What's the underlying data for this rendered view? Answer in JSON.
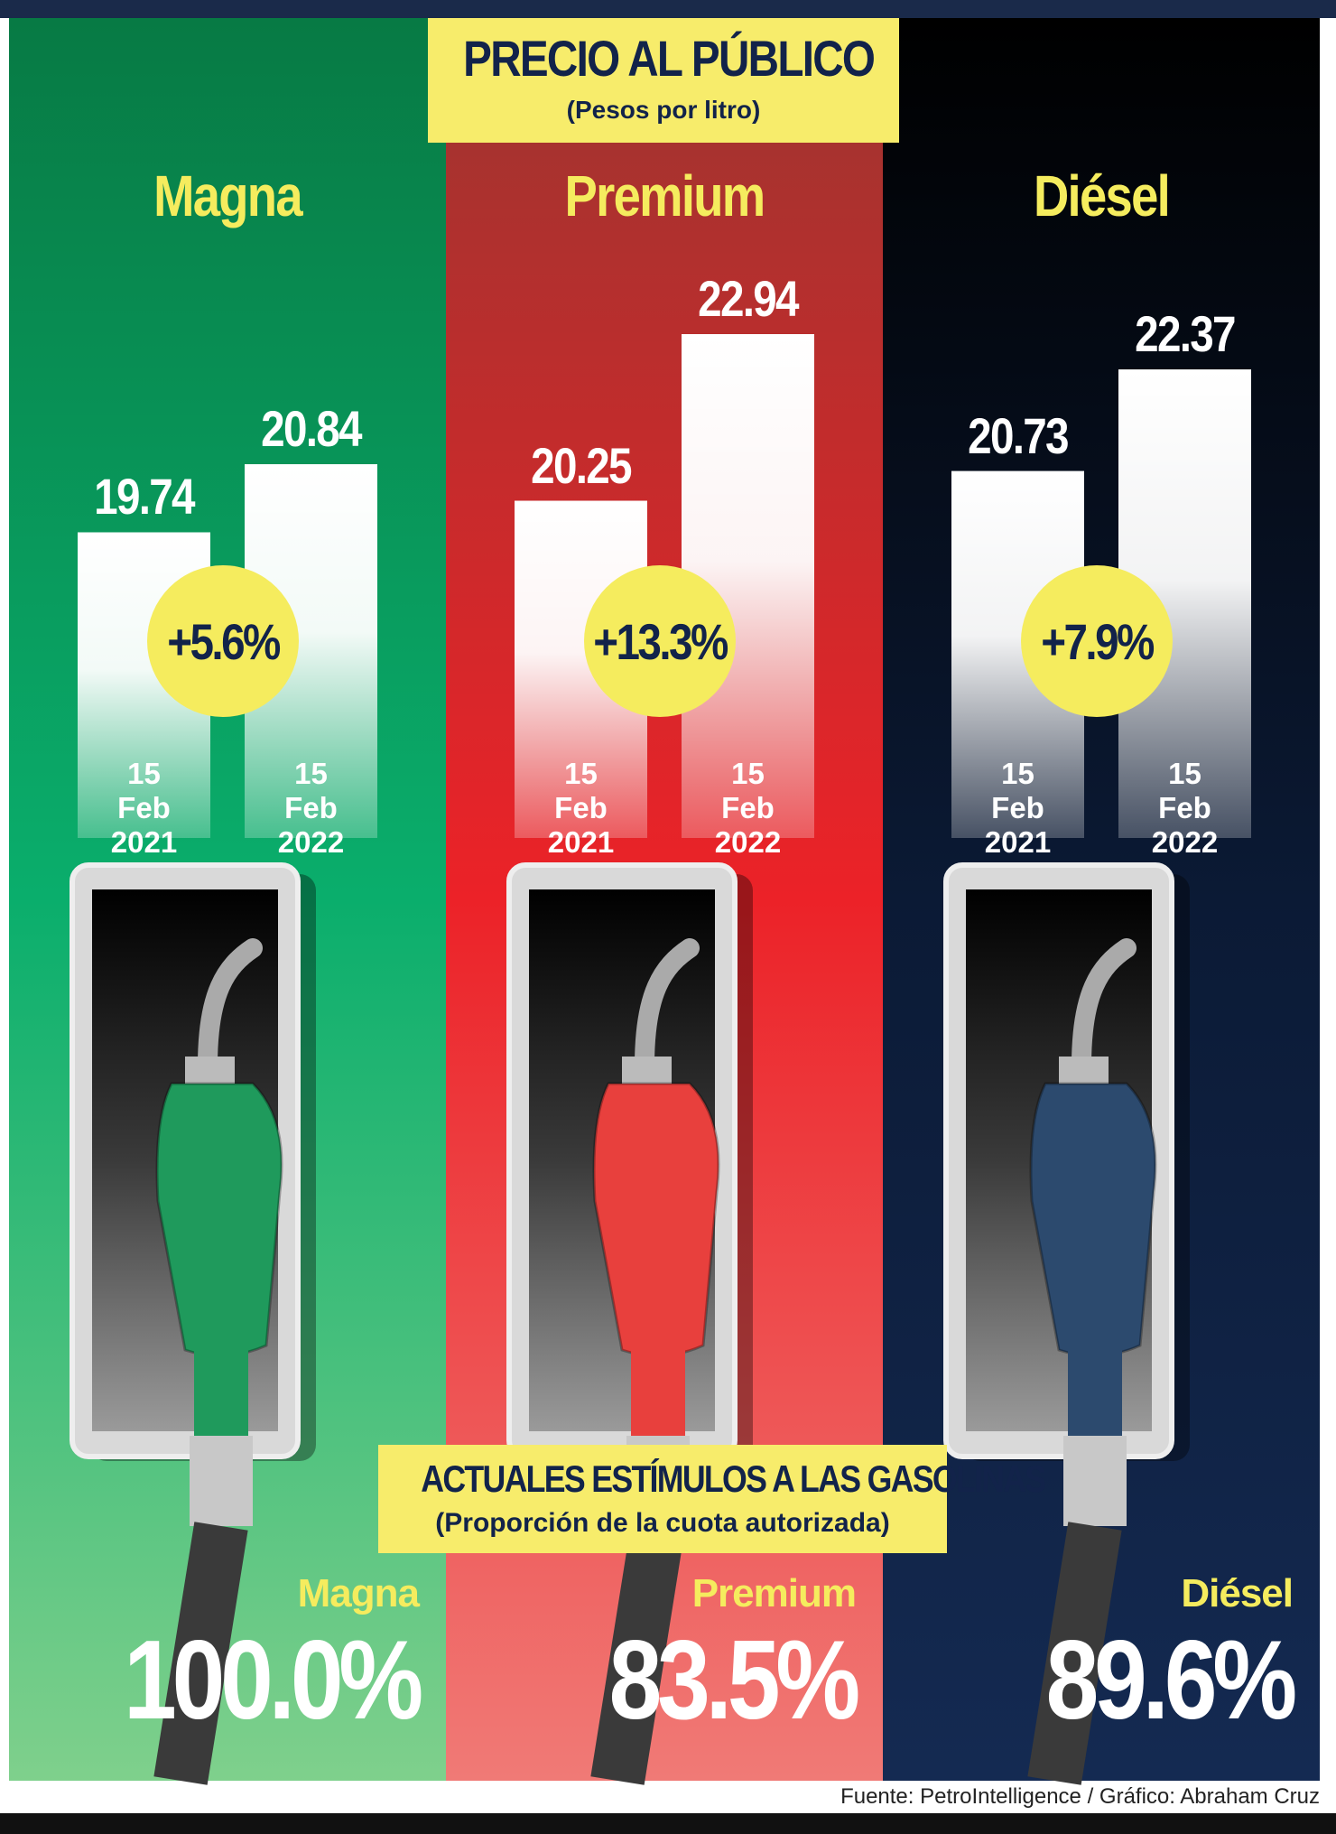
{
  "header": {
    "title": "PRECIO AL PÚBLICO",
    "subtitle": "(Pesos por litro)"
  },
  "stimulus_header": {
    "title": "ACTUALES ESTÍMULOS A LAS GASOLINAS",
    "subtitle": "(Proporción de la cuota autorizada)"
  },
  "source": "Fuente: PetroIntelligence / Gráfico: Abraham Cruz",
  "chart_data": [
    {
      "type": "bar",
      "title": "Magna",
      "categories": [
        "15 Feb 2021",
        "15 Feb 2022"
      ],
      "values": [
        19.74,
        20.84
      ],
      "color": "#0a9a5a",
      "annotation": "+5.6%",
      "stimulus": "100.0%"
    },
    {
      "type": "bar",
      "title": "Premium",
      "categories": [
        "15 Feb 2021",
        "15 Feb 2022"
      ],
      "values": [
        20.25,
        22.94
      ],
      "color": "#d8262b",
      "annotation": "+13.3%",
      "stimulus": "83.5%"
    },
    {
      "type": "bar",
      "title": "Diésel",
      "categories": [
        "15 Feb 2021",
        "15 Feb 2022"
      ],
      "values": [
        20.73,
        22.37
      ],
      "color": "#0d1e3e",
      "annotation": "+7.9%",
      "stimulus": "89.6%"
    }
  ]
}
